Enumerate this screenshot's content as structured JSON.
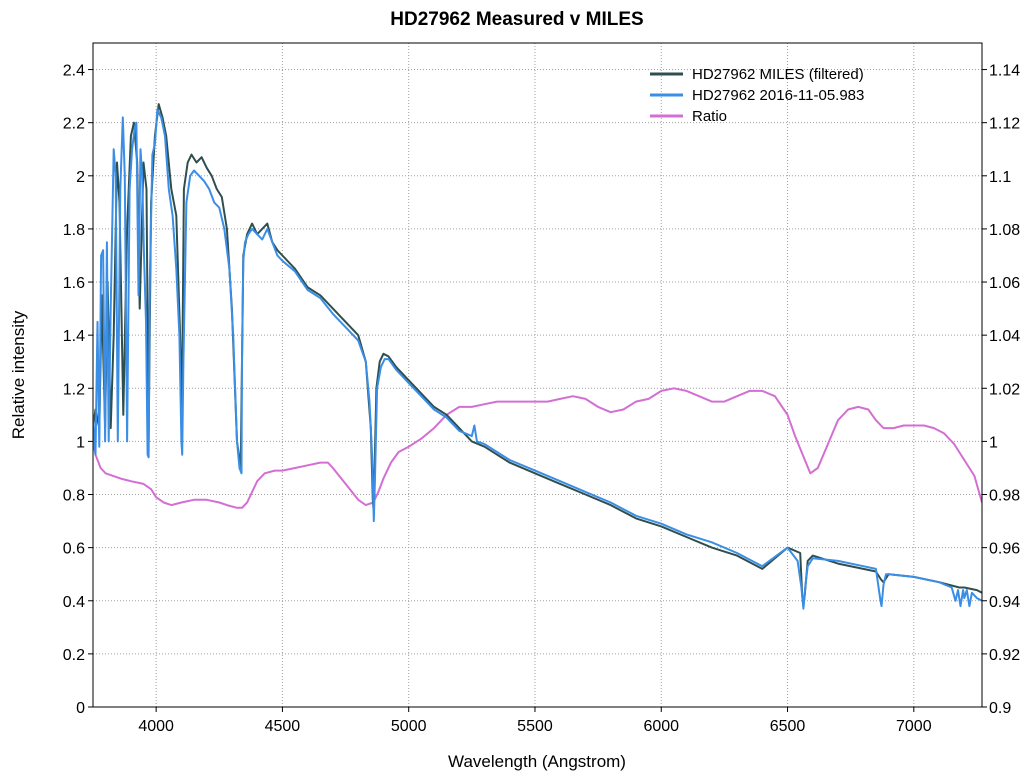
{
  "chart_data": {
    "type": "line",
    "title": "HD27962    Measured v MILES",
    "xlabel": "Wavelength (Angstrom)",
    "ylabel": "Relative intensity",
    "xlim": [
      3750,
      7270
    ],
    "ylim": [
      0,
      2.5
    ],
    "y2lim": [
      0.9,
      1.15
    ],
    "xticks": [
      4000,
      4500,
      5000,
      5500,
      6000,
      6500,
      7000
    ],
    "yticks": [
      0,
      0.2,
      0.4,
      0.6,
      0.8,
      1,
      1.2,
      1.4,
      1.6,
      1.8,
      2,
      2.2,
      2.4
    ],
    "y2ticks": [
      0.9,
      0.92,
      0.94,
      0.96,
      0.98,
      1,
      1.02,
      1.04,
      1.06,
      1.08,
      1.1,
      1.12,
      1.14
    ],
    "xtick_labels": [
      "4000",
      "4500",
      "5000",
      "5500",
      "6000",
      "6500",
      "7000"
    ],
    "ytick_labels": [
      "0",
      "0.2",
      "0.4",
      "0.6",
      "0.8",
      "1",
      "1.2",
      "1.4",
      "1.6",
      "1.8",
      "2",
      "2.2",
      "2.4"
    ],
    "y2tick_labels": [
      "0.9",
      "0.92",
      "0.94",
      "0.96",
      "0.98",
      "1",
      "1.02",
      "1.04",
      "1.06",
      "1.08",
      "1.1",
      "1.12",
      "1.14"
    ],
    "grid": true,
    "legend_position": "top-right",
    "series": [
      {
        "name": "HD27962  MILES  (filtered)",
        "axis": "left",
        "color": "#2f4f4f",
        "x": [
          3750,
          3760,
          3775,
          3785,
          3798,
          3808,
          3820,
          3832,
          3845,
          3855,
          3870,
          3885,
          3900,
          3912,
          3925,
          3935,
          3950,
          3962,
          3970,
          3980,
          3995,
          4010,
          4025,
          4040,
          4060,
          4080,
          4095,
          4102,
          4110,
          4125,
          4140,
          4160,
          4180,
          4200,
          4220,
          4240,
          4260,
          4280,
          4300,
          4320,
          4335,
          4340,
          4345,
          4360,
          4380,
          4400,
          4420,
          4440,
          4460,
          4480,
          4500,
          4550,
          4600,
          4650,
          4700,
          4750,
          4800,
          4830,
          4850,
          4858,
          4861,
          4864,
          4872,
          4885,
          4900,
          4920,
          4950,
          5000,
          5050,
          5100,
          5150,
          5200,
          5250,
          5300,
          5400,
          5500,
          5600,
          5700,
          5800,
          5900,
          6000,
          6100,
          6200,
          6300,
          6400,
          6500,
          6550,
          6558,
          6563,
          6568,
          6580,
          6600,
          6700,
          6800,
          6850,
          6870,
          6880,
          6900,
          7000,
          7100,
          7180,
          7200,
          7250,
          7270
        ],
        "y": [
          1.05,
          1.12,
          1.05,
          1.55,
          1.05,
          1.6,
          1.05,
          1.4,
          2.05,
          1.9,
          1.1,
          1.8,
          2.15,
          2.2,
          2.05,
          1.5,
          2.05,
          1.95,
          1.0,
          1.9,
          2.15,
          2.27,
          2.22,
          2.15,
          1.95,
          1.85,
          1.4,
          1.1,
          1.95,
          2.05,
          2.08,
          2.05,
          2.07,
          2.03,
          2.0,
          1.95,
          1.92,
          1.8,
          1.5,
          1.0,
          0.9,
          1.3,
          1.7,
          1.78,
          1.82,
          1.78,
          1.8,
          1.82,
          1.75,
          1.72,
          1.7,
          1.65,
          1.58,
          1.55,
          1.5,
          1.45,
          1.4,
          1.3,
          1.05,
          0.78,
          0.74,
          0.85,
          1.2,
          1.3,
          1.33,
          1.32,
          1.28,
          1.23,
          1.18,
          1.13,
          1.1,
          1.05,
          1.0,
          0.98,
          0.92,
          0.88,
          0.84,
          0.8,
          0.76,
          0.71,
          0.68,
          0.64,
          0.6,
          0.57,
          0.52,
          0.6,
          0.58,
          0.42,
          0.38,
          0.42,
          0.55,
          0.57,
          0.54,
          0.52,
          0.51,
          0.48,
          0.47,
          0.5,
          0.49,
          0.47,
          0.45,
          0.45,
          0.44,
          0.43
        ]
      },
      {
        "name": "HD27962   2016-11-05.983",
        "axis": "left",
        "color": "#3a8ee6",
        "x": [
          3750,
          3760,
          3768,
          3775,
          3782,
          3790,
          3798,
          3805,
          3812,
          3820,
          3832,
          3840,
          3848,
          3858,
          3868,
          3876,
          3885,
          3895,
          3905,
          3915,
          3922,
          3930,
          3938,
          3945,
          3952,
          3960,
          3966,
          3970,
          3975,
          3985,
          3995,
          4005,
          4020,
          4035,
          4050,
          4065,
          4080,
          4092,
          4100,
          4103,
          4108,
          4120,
          4135,
          4150,
          4170,
          4190,
          4210,
          4230,
          4250,
          4270,
          4290,
          4305,
          4320,
          4330,
          4338,
          4340,
          4345,
          4352,
          4365,
          4380,
          4400,
          4420,
          4440,
          4460,
          4480,
          4500,
          4550,
          4600,
          4650,
          4700,
          4750,
          4800,
          4830,
          4845,
          4855,
          4860,
          4862,
          4866,
          4875,
          4890,
          4905,
          4920,
          4950,
          5000,
          5050,
          5100,
          5150,
          5200,
          5250,
          5260,
          5270,
          5300,
          5400,
          5500,
          5600,
          5700,
          5800,
          5900,
          6000,
          6100,
          6200,
          6300,
          6400,
          6500,
          6540,
          6555,
          6563,
          6570,
          6580,
          6600,
          6700,
          6800,
          6850,
          6868,
          6872,
          6880,
          6890,
          6900,
          7000,
          7100,
          7150,
          7165,
          7175,
          7185,
          7195,
          7200,
          7210,
          7220,
          7230,
          7250,
          7270
        ],
        "y": [
          1.1,
          0.95,
          1.45,
          0.98,
          1.7,
          1.72,
          1.0,
          1.75,
          1.0,
          1.5,
          2.1,
          2.0,
          1.0,
          1.95,
          2.22,
          2.0,
          1.0,
          1.95,
          2.1,
          2.18,
          2.2,
          1.55,
          2.1,
          2.0,
          1.7,
          1.45,
          0.95,
          0.94,
          1.6,
          2.08,
          2.12,
          2.25,
          2.22,
          2.15,
          1.95,
          1.85,
          1.65,
          1.4,
          1.0,
          0.95,
          1.3,
          1.9,
          2.0,
          2.02,
          2.0,
          1.98,
          1.95,
          1.9,
          1.88,
          1.8,
          1.65,
          1.4,
          1.0,
          0.9,
          0.88,
          1.3,
          1.68,
          1.75,
          1.78,
          1.8,
          1.78,
          1.76,
          1.8,
          1.75,
          1.7,
          1.68,
          1.64,
          1.57,
          1.54,
          1.48,
          1.43,
          1.38,
          1.3,
          1.15,
          0.95,
          0.78,
          0.7,
          0.85,
          1.2,
          1.28,
          1.31,
          1.31,
          1.27,
          1.22,
          1.17,
          1.12,
          1.09,
          1.04,
          1.02,
          1.06,
          1.0,
          0.99,
          0.93,
          0.89,
          0.85,
          0.81,
          0.77,
          0.72,
          0.69,
          0.65,
          0.62,
          0.58,
          0.53,
          0.6,
          0.55,
          0.45,
          0.37,
          0.45,
          0.53,
          0.56,
          0.55,
          0.53,
          0.52,
          0.4,
          0.38,
          0.46,
          0.5,
          0.5,
          0.49,
          0.47,
          0.45,
          0.4,
          0.44,
          0.38,
          0.44,
          0.41,
          0.44,
          0.38,
          0.43,
          0.41,
          0.4
        ]
      },
      {
        "name": "Ratio",
        "axis": "right",
        "color": "#d36fd3",
        "x": [
          3750,
          3760,
          3780,
          3800,
          3830,
          3860,
          3900,
          3950,
          3980,
          4000,
          4030,
          4060,
          4100,
          4150,
          4200,
          4250,
          4280,
          4320,
          4340,
          4360,
          4380,
          4400,
          4430,
          4470,
          4500,
          4550,
          4600,
          4650,
          4680,
          4700,
          4750,
          4800,
          4830,
          4860,
          4880,
          4900,
          4930,
          4960,
          5000,
          5050,
          5100,
          5150,
          5200,
          5250,
          5300,
          5350,
          5400,
          5450,
          5500,
          5550,
          5600,
          5650,
          5700,
          5750,
          5800,
          5850,
          5900,
          5950,
          6000,
          6050,
          6100,
          6150,
          6200,
          6250,
          6300,
          6350,
          6400,
          6450,
          6500,
          6530,
          6560,
          6590,
          6620,
          6660,
          6700,
          6740,
          6780,
          6820,
          6850,
          6880,
          6920,
          6960,
          7000,
          7040,
          7080,
          7120,
          7160,
          7200,
          7240,
          7270
        ],
        "y": [
          1.0,
          0.995,
          0.99,
          0.988,
          0.987,
          0.986,
          0.985,
          0.984,
          0.982,
          0.979,
          0.977,
          0.976,
          0.977,
          0.978,
          0.978,
          0.977,
          0.976,
          0.975,
          0.975,
          0.977,
          0.981,
          0.985,
          0.988,
          0.989,
          0.989,
          0.99,
          0.991,
          0.992,
          0.992,
          0.99,
          0.984,
          0.978,
          0.976,
          0.977,
          0.981,
          0.986,
          0.992,
          0.996,
          0.998,
          1.001,
          1.005,
          1.01,
          1.013,
          1.013,
          1.014,
          1.015,
          1.015,
          1.015,
          1.015,
          1.015,
          1.016,
          1.017,
          1.016,
          1.013,
          1.011,
          1.012,
          1.015,
          1.016,
          1.019,
          1.02,
          1.019,
          1.017,
          1.015,
          1.015,
          1.017,
          1.019,
          1.019,
          1.017,
          1.01,
          1.002,
          0.995,
          0.988,
          0.99,
          0.999,
          1.008,
          1.012,
          1.013,
          1.012,
          1.008,
          1.005,
          1.005,
          1.006,
          1.006,
          1.006,
          1.005,
          1.003,
          0.999,
          0.993,
          0.987,
          0.977
        ]
      }
    ]
  }
}
